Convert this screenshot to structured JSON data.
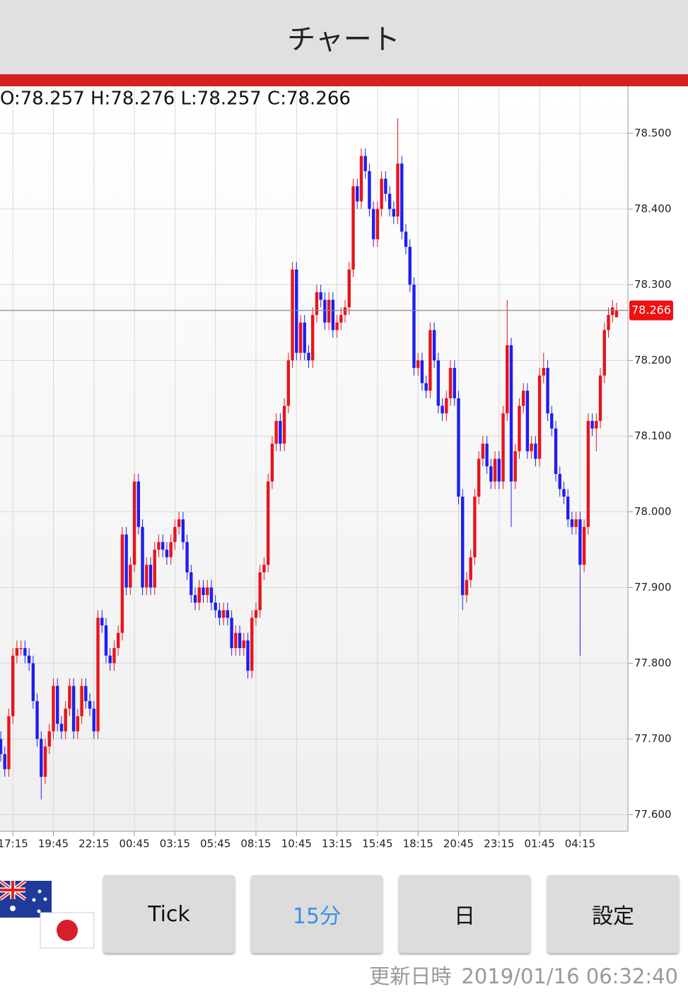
{
  "header": {
    "title": "チャート"
  },
  "chart_data": {
    "type": "candlestick",
    "ohlc_info": "O:78.257 H:78.276 L:78.257 C:78.266",
    "up_color": "#e8141c",
    "down_color": "#1e1ef0",
    "last_price": 78.266,
    "ylim": [
      77.578,
      78.562
    ],
    "yticks": [
      {
        "value": 77.6,
        "label": "77.600"
      },
      {
        "value": 77.7,
        "label": "77.700"
      },
      {
        "value": 77.8,
        "label": "77.800"
      },
      {
        "value": 77.9,
        "label": "77.900"
      },
      {
        "value": 78.0,
        "label": "78.000"
      },
      {
        "value": 78.1,
        "label": "78.100"
      },
      {
        "value": 78.2,
        "label": "78.200"
      },
      {
        "value": 78.3,
        "label": "78.300"
      },
      {
        "value": 78.4,
        "label": "78.400"
      },
      {
        "value": 78.5,
        "label": "78.500"
      }
    ],
    "grid": true,
    "categories": [
      null,
      null,
      null,
      "17:15",
      null,
      null,
      null,
      null,
      null,
      null,
      null,
      null,
      null,
      "19:45",
      null,
      null,
      null,
      null,
      null,
      null,
      null,
      null,
      null,
      "22:15",
      null,
      null,
      null,
      null,
      null,
      null,
      null,
      null,
      null,
      "00:45",
      null,
      null,
      null,
      null,
      null,
      null,
      null,
      null,
      null,
      "03:15",
      null,
      null,
      null,
      null,
      null,
      null,
      null,
      null,
      null,
      "05:45",
      null,
      null,
      null,
      null,
      null,
      null,
      null,
      null,
      null,
      "08:15",
      null,
      null,
      null,
      null,
      null,
      null,
      null,
      null,
      null,
      "10:45",
      null,
      null,
      null,
      null,
      null,
      null,
      null,
      null,
      null,
      "13:15",
      null,
      null,
      null,
      null,
      null,
      null,
      null,
      null,
      null,
      "15:45",
      null,
      null,
      null,
      null,
      null,
      null,
      null,
      null,
      null,
      "18:15",
      null,
      null,
      null,
      null,
      null,
      null,
      null,
      null,
      null,
      "20:45",
      null,
      null,
      null,
      null,
      null,
      null,
      null,
      null,
      null,
      "23:15",
      null,
      null,
      null,
      null,
      null,
      null,
      null,
      null,
      null,
      "01:45",
      null,
      null,
      null,
      null,
      null,
      null,
      null,
      null,
      null,
      "04:15",
      null,
      null,
      null,
      null,
      null,
      null,
      null,
      null,
      null
    ],
    "open": [
      77.7,
      77.68,
      77.66,
      77.73,
      77.81,
      77.82,
      77.82,
      77.81,
      77.8,
      77.75,
      77.7,
      77.65,
      77.69,
      77.71,
      77.77,
      77.72,
      77.71,
      77.74,
      77.77,
      77.71,
      77.73,
      77.77,
      77.75,
      77.74,
      77.71,
      77.86,
      77.85,
      77.81,
      77.8,
      77.82,
      77.84,
      77.97,
      77.9,
      77.93,
      78.04,
      77.98,
      77.9,
      77.93,
      77.9,
      77.95,
      77.96,
      77.95,
      77.94,
      77.96,
      77.98,
      77.99,
      77.96,
      77.92,
      77.89,
      77.88,
      77.9,
      77.89,
      77.9,
      77.88,
      77.87,
      77.86,
      77.87,
      77.86,
      77.82,
      77.84,
      77.82,
      77.83,
      77.79,
      77.86,
      77.87,
      77.92,
      77.93,
      78.04,
      78.09,
      78.12,
      78.09,
      78.14,
      78.2,
      78.32,
      78.21,
      78.25,
      78.21,
      78.2,
      78.26,
      78.29,
      78.28,
      78.25,
      78.28,
      78.24,
      78.25,
      78.26,
      78.27,
      78.32,
      78.43,
      78.41,
      78.47,
      78.45,
      78.4,
      78.36,
      78.4,
      78.44,
      78.42,
      78.4,
      78.39,
      78.46,
      78.37,
      78.35,
      78.3,
      78.19,
      78.2,
      78.17,
      78.16,
      78.24,
      78.2,
      78.14,
      78.13,
      78.15,
      78.19,
      78.15,
      78.02,
      77.89,
      77.91,
      77.94,
      78.02,
      78.07,
      78.09,
      78.06,
      78.04,
      78.07,
      78.04,
      78.13,
      78.22,
      78.04,
      78.08,
      78.14,
      78.16,
      78.08,
      78.09,
      78.07,
      78.18,
      78.19,
      78.13,
      78.11,
      78.05,
      78.03,
      78.02,
      77.99,
      77.98,
      77.99,
      77.93,
      77.98,
      78.12,
      78.11,
      78.12,
      78.18,
      78.24,
      78.26,
      78.257
    ],
    "high": [
      77.71,
      77.69,
      77.74,
      77.82,
      77.83,
      77.83,
      77.83,
      77.82,
      77.81,
      77.76,
      77.71,
      77.7,
      77.72,
      77.78,
      77.78,
      77.73,
      77.75,
      77.78,
      77.78,
      77.74,
      77.78,
      77.78,
      77.76,
      77.75,
      77.87,
      77.87,
      77.86,
      77.82,
      77.83,
      77.85,
      77.98,
      77.98,
      77.94,
      78.05,
      78.05,
      77.99,
      77.94,
      77.94,
      77.96,
      77.97,
      77.97,
      77.96,
      77.97,
      77.99,
      78.0,
      78.0,
      77.97,
      77.93,
      77.9,
      77.91,
      77.91,
      77.91,
      77.91,
      77.89,
      77.88,
      77.88,
      77.88,
      77.87,
      77.85,
      77.85,
      77.84,
      77.84,
      77.87,
      77.88,
      77.93,
      77.94,
      78.05,
      78.1,
      78.13,
      78.13,
      78.15,
      78.21,
      78.33,
      78.33,
      78.26,
      78.26,
      78.22,
      78.27,
      78.3,
      78.3,
      78.29,
      78.29,
      78.29,
      78.26,
      78.27,
      78.28,
      78.33,
      78.44,
      78.44,
      78.48,
      78.48,
      78.46,
      78.41,
      78.41,
      78.45,
      78.45,
      78.43,
      78.41,
      78.52,
      78.47,
      78.38,
      78.36,
      78.31,
      78.21,
      78.21,
      78.18,
      78.25,
      78.25,
      78.21,
      78.15,
      78.16,
      78.2,
      78.2,
      78.16,
      78.03,
      77.92,
      77.95,
      78.03,
      78.08,
      78.1,
      78.1,
      78.07,
      78.08,
      78.08,
      78.14,
      78.28,
      78.23,
      78.09,
      78.15,
      78.17,
      78.17,
      78.1,
      78.1,
      78.19,
      78.21,
      78.2,
      78.14,
      78.12,
      78.06,
      78.04,
      78.03,
      78.0,
      78.0,
      78.0,
      77.99,
      78.13,
      78.13,
      78.13,
      78.19,
      78.25,
      78.27,
      78.28,
      78.276
    ],
    "low": [
      77.67,
      77.65,
      77.65,
      77.72,
      77.8,
      77.81,
      77.8,
      77.79,
      77.74,
      77.69,
      77.62,
      77.64,
      77.68,
      77.7,
      77.71,
      77.7,
      77.7,
      77.73,
      77.7,
      77.7,
      77.72,
      77.74,
      77.73,
      77.7,
      77.7,
      77.84,
      77.8,
      77.79,
      77.79,
      77.81,
      77.83,
      77.89,
      77.89,
      77.92,
      77.97,
      77.89,
      77.89,
      77.89,
      77.89,
      77.94,
      77.94,
      77.93,
      77.93,
      77.95,
      77.97,
      77.95,
      77.91,
      77.88,
      77.87,
      77.87,
      77.88,
      77.88,
      77.87,
      77.86,
      77.85,
      77.85,
      77.85,
      77.81,
      77.81,
      77.81,
      77.81,
      77.78,
      77.78,
      77.85,
      77.86,
      77.91,
      77.92,
      78.03,
      78.08,
      78.08,
      78.08,
      78.13,
      78.19,
      78.2,
      78.2,
      78.2,
      78.19,
      78.19,
      78.25,
      78.27,
      78.24,
      78.24,
      78.23,
      78.23,
      78.24,
      78.25,
      78.26,
      78.31,
      78.4,
      78.4,
      78.44,
      78.39,
      78.35,
      78.35,
      78.39,
      78.41,
      78.39,
      78.38,
      78.38,
      78.36,
      78.34,
      78.29,
      78.18,
      78.18,
      78.16,
      78.15,
      78.15,
      78.19,
      78.13,
      78.12,
      78.12,
      78.14,
      78.14,
      78.01,
      77.87,
      77.88,
      77.9,
      77.93,
      78.01,
      78.06,
      78.05,
      78.03,
      78.03,
      78.03,
      78.03,
      78.12,
      77.98,
      78.03,
      78.07,
      78.13,
      78.07,
      78.07,
      78.06,
      78.06,
      78.17,
      78.12,
      78.1,
      78.04,
      78.02,
      78.01,
      77.98,
      77.97,
      77.97,
      77.81,
      77.92,
      77.97,
      78.1,
      78.08,
      78.11,
      78.17,
      78.23,
      78.25,
      78.257
    ],
    "close": [
      77.68,
      77.66,
      77.73,
      77.81,
      77.82,
      77.82,
      77.81,
      77.8,
      77.75,
      77.7,
      77.65,
      77.69,
      77.71,
      77.77,
      77.72,
      77.71,
      77.74,
      77.77,
      77.71,
      77.73,
      77.77,
      77.75,
      77.74,
      77.71,
      77.86,
      77.85,
      77.81,
      77.8,
      77.82,
      77.84,
      77.97,
      77.9,
      77.93,
      78.04,
      77.98,
      77.9,
      77.93,
      77.9,
      77.95,
      77.96,
      77.95,
      77.94,
      77.96,
      77.98,
      77.99,
      77.96,
      77.92,
      77.89,
      77.88,
      77.9,
      77.89,
      77.9,
      77.88,
      77.87,
      77.86,
      77.87,
      77.86,
      77.82,
      77.84,
      77.82,
      77.83,
      77.79,
      77.86,
      77.87,
      77.92,
      77.93,
      78.04,
      78.09,
      78.12,
      78.09,
      78.14,
      78.2,
      78.32,
      78.21,
      78.25,
      78.21,
      78.2,
      78.26,
      78.29,
      78.28,
      78.25,
      78.28,
      78.24,
      78.25,
      78.26,
      78.27,
      78.32,
      78.43,
      78.41,
      78.47,
      78.45,
      78.4,
      78.36,
      78.4,
      78.44,
      78.42,
      78.4,
      78.39,
      78.46,
      78.37,
      78.35,
      78.3,
      78.19,
      78.2,
      78.17,
      78.16,
      78.24,
      78.2,
      78.14,
      78.13,
      78.15,
      78.19,
      78.15,
      78.02,
      77.89,
      77.91,
      77.94,
      78.02,
      78.07,
      78.09,
      78.06,
      78.04,
      78.07,
      78.04,
      78.13,
      78.22,
      78.04,
      78.08,
      78.14,
      78.16,
      78.08,
      78.09,
      78.07,
      78.18,
      78.19,
      78.13,
      78.11,
      78.05,
      78.03,
      78.02,
      77.99,
      77.98,
      77.99,
      77.93,
      77.98,
      78.12,
      78.11,
      78.12,
      78.18,
      78.24,
      78.26,
      78.27,
      78.266
    ]
  },
  "buttons": [
    "Tick",
    "15分",
    "日",
    "設定"
  ],
  "footer": {
    "updated_label": "更新日時",
    "updated_time": "2019/01/16 06:32:40"
  }
}
